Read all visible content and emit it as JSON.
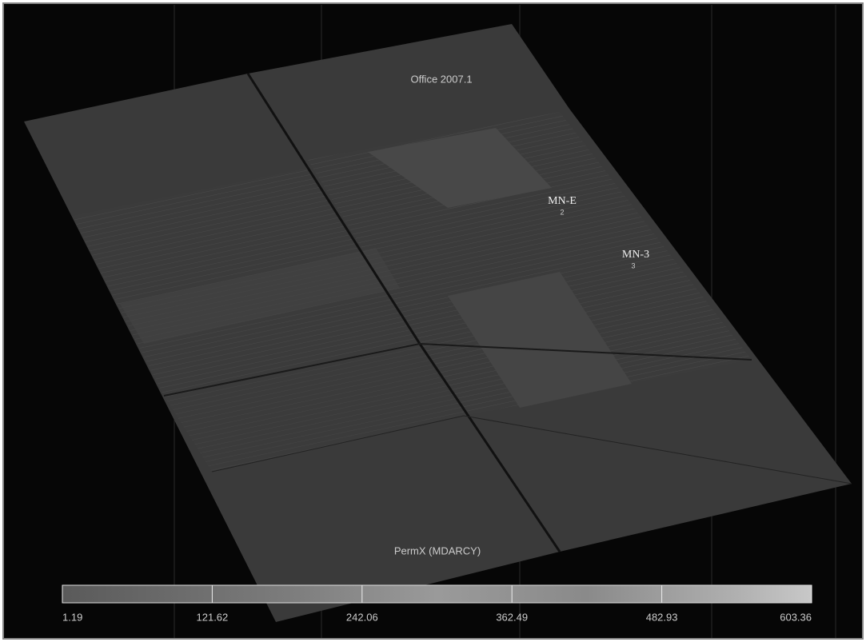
{
  "viewer": {
    "title": "Office 2007.1",
    "wells": [
      {
        "name": "MN-E",
        "number": "2"
      },
      {
        "name": "MN-3",
        "number": "3"
      }
    ],
    "colorbar": {
      "label": "PermX (MDARCY)",
      "min": 1.19,
      "max": 603.36,
      "ticks": [
        1.19,
        121.62,
        242.06,
        362.49,
        482.93,
        603.36
      ]
    }
  }
}
